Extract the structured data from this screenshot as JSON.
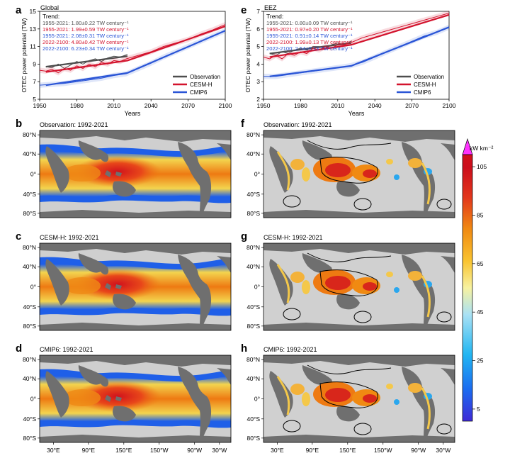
{
  "figure": {
    "panel_letters": [
      "a",
      "e",
      "b",
      "f",
      "c",
      "g",
      "d",
      "h"
    ],
    "colorbar": {
      "unit_label": "kW km⁻²",
      "ticks": [
        5,
        25,
        45,
        65,
        85,
        105
      ],
      "range": [
        0,
        110
      ],
      "colors": [
        "#3f2ad6",
        "#1b6cf0",
        "#21b6f2",
        "#a9e1f4",
        "#f7f2a0",
        "#f9c431",
        "#f08a12",
        "#e2361c",
        "#cc0f1c",
        "#ff33ff"
      ]
    },
    "map_x_ticks": [
      "30°E",
      "90°E",
      "150°E",
      "150°W",
      "90°W",
      "30°W"
    ],
    "map_y_ticks": [
      "80°N",
      "40°N",
      "0°",
      "40°S",
      "80°S"
    ],
    "map_titles": {
      "b": "Observation: 1992-2021",
      "f": "Observation: 1992-2021",
      "c": "CESM-H: 1992-2021",
      "g": "CESM-H: 1992-2021",
      "d": "CMIP6: 1992-2021",
      "h": "CMIP6: 1992-2021"
    },
    "colors": {
      "observation": "#4d4d4d",
      "cesm_h": "#d3132d",
      "cmip6": "#2a55d6",
      "land": "#6f6f6f",
      "ocean_bg": "#cfcfcf"
    }
  },
  "chart_data": [
    {
      "type": "line",
      "panel": "a",
      "title": "Global",
      "xlabel": "Years",
      "ylabel": "OTEC power potential (TW)",
      "xlim": [
        1950,
        2100
      ],
      "ylim": [
        5,
        15
      ],
      "xticks": [
        1950,
        1980,
        2010,
        2040,
        2070,
        2100
      ],
      "yticks": [
        5,
        7,
        9,
        11,
        13,
        15
      ],
      "trend_heading": "Trend:",
      "trend_lines": [
        {
          "text": "1955-2021: 1.80±0.22 TW century⁻¹",
          "color": "#4d4d4d"
        },
        {
          "text": "1955-2021: 1.99±0.59 TW century⁻¹",
          "color": "#d3132d"
        },
        {
          "text": "1955-2021: 2.08±0.31 TW century⁻¹",
          "color": "#2a55d6"
        },
        {
          "text": "2022-2100: 4.80±0.42 TW century⁻¹",
          "color": "#d3132d"
        },
        {
          "text": "2022-2100: 6.23±0.34 TW century⁻¹",
          "color": "#2a55d6"
        }
      ],
      "legend": [
        "Observation",
        "CESM-H",
        "CMIP6"
      ],
      "series": [
        {
          "name": "Observation",
          "x": [
            1955,
            1960,
            1965,
            1970,
            1975,
            1980,
            1985,
            1990,
            1995,
            2000,
            2005,
            2010,
            2015,
            2021
          ],
          "values": [
            8.7,
            8.6,
            9.0,
            8.5,
            8.9,
            9.3,
            9.0,
            9.4,
            9.6,
            9.3,
            9.7,
            9.9,
            9.8,
            10.1
          ],
          "trend": [
            [
              1955,
              8.7
            ],
            [
              2021,
              9.9
            ]
          ]
        },
        {
          "name": "CESM-H",
          "x": [
            1950,
            1955,
            1960,
            1965,
            1970,
            1975,
            1980,
            1985,
            1990,
            1995,
            2000,
            2005,
            2010,
            2015,
            2020,
            2030,
            2040,
            2050,
            2060,
            2070,
            2080,
            2090,
            2100
          ],
          "values": [
            8.3,
            8.2,
            8.4,
            8.0,
            8.5,
            8.3,
            8.8,
            8.5,
            9.0,
            8.7,
            9.2,
            9.0,
            9.4,
            9.3,
            9.6,
            10.0,
            10.4,
            11.0,
            11.4,
            11.8,
            12.4,
            12.9,
            13.5
          ],
          "trend": [
            [
              1955,
              8.1
            ],
            [
              2021,
              9.4
            ],
            [
              2100,
              13.3
            ]
          ]
        },
        {
          "name": "CMIP6",
          "x": [
            1950,
            1960,
            1970,
            1980,
            1990,
            2000,
            2010,
            2020,
            2030,
            2040,
            2050,
            2060,
            2070,
            2080,
            2090,
            2100
          ],
          "values": [
            6.6,
            6.7,
            6.8,
            7.0,
            7.2,
            7.4,
            7.7,
            7.9,
            8.5,
            9.1,
            9.8,
            10.4,
            11.0,
            11.6,
            12.2,
            12.8
          ],
          "trend": [
            [
              1955,
              6.6
            ],
            [
              2021,
              8.0
            ],
            [
              2100,
              12.8
            ]
          ]
        }
      ]
    },
    {
      "type": "line",
      "panel": "e",
      "title": "EEZ",
      "xlabel": "Years",
      "ylabel": "OTEC power potential (TW)",
      "xlim": [
        1950,
        2100
      ],
      "ylim": [
        2,
        7
      ],
      "xticks": [
        1950,
        1980,
        2010,
        2040,
        2070,
        2100
      ],
      "yticks": [
        2,
        3,
        4,
        5,
        6,
        7
      ],
      "trend_heading": "Trend:",
      "trend_lines": [
        {
          "text": "1955-2021: 0.80±0.09 TW century⁻¹",
          "color": "#4d4d4d"
        },
        {
          "text": "1955-2021: 0.97±0.20 TW century⁻¹",
          "color": "#d3132d"
        },
        {
          "text": "1955-2021: 0.91±0.14 TW century⁻¹",
          "color": "#2a55d6"
        },
        {
          "text": "2022-2100: 1.99±0.13 TW century⁻¹",
          "color": "#d3132d"
        },
        {
          "text": "2022-2100: 2.54±0.13 TW century⁻¹",
          "color": "#2a55d6"
        }
      ],
      "legend": [
        "Observation",
        "CESM-H",
        "CMIP6"
      ],
      "series": [
        {
          "name": "Observation",
          "x": [
            1955,
            1960,
            1965,
            1970,
            1975,
            1980,
            1985,
            1990,
            1995,
            2000,
            2005,
            2010,
            2015,
            2021
          ],
          "values": [
            4.6,
            4.5,
            4.7,
            4.6,
            4.8,
            4.9,
            4.8,
            5.0,
            5.0,
            4.9,
            5.1,
            5.2,
            5.1,
            5.3
          ],
          "trend": [
            [
              1955,
              4.6
            ],
            [
              2021,
              5.2
            ]
          ]
        },
        {
          "name": "CESM-H",
          "x": [
            1950,
            1955,
            1960,
            1965,
            1970,
            1975,
            1980,
            1985,
            1990,
            1995,
            2000,
            2005,
            2010,
            2015,
            2020,
            2030,
            2040,
            2050,
            2060,
            2070,
            2080,
            2090,
            2100
          ],
          "values": [
            4.4,
            4.3,
            4.5,
            4.3,
            4.6,
            4.5,
            4.7,
            4.6,
            4.9,
            4.8,
            5.0,
            4.9,
            5.1,
            5.1,
            5.2,
            5.5,
            5.7,
            5.9,
            6.1,
            6.3,
            6.5,
            6.7,
            6.9
          ],
          "trend": [
            [
              1955,
              4.4
            ],
            [
              2021,
              5.1
            ],
            [
              2100,
              6.8
            ]
          ]
        },
        {
          "name": "CMIP6",
          "x": [
            1950,
            1960,
            1970,
            1980,
            1990,
            2000,
            2010,
            2020,
            2030,
            2040,
            2050,
            2060,
            2070,
            2080,
            2090,
            2100
          ],
          "values": [
            3.3,
            3.3,
            3.4,
            3.5,
            3.6,
            3.7,
            3.8,
            3.9,
            4.1,
            4.4,
            4.7,
            5.0,
            5.3,
            5.6,
            5.8,
            6.1
          ],
          "trend": [
            [
              1955,
              3.3
            ],
            [
              2021,
              3.9
            ],
            [
              2100,
              6.1
            ]
          ]
        }
      ]
    }
  ]
}
